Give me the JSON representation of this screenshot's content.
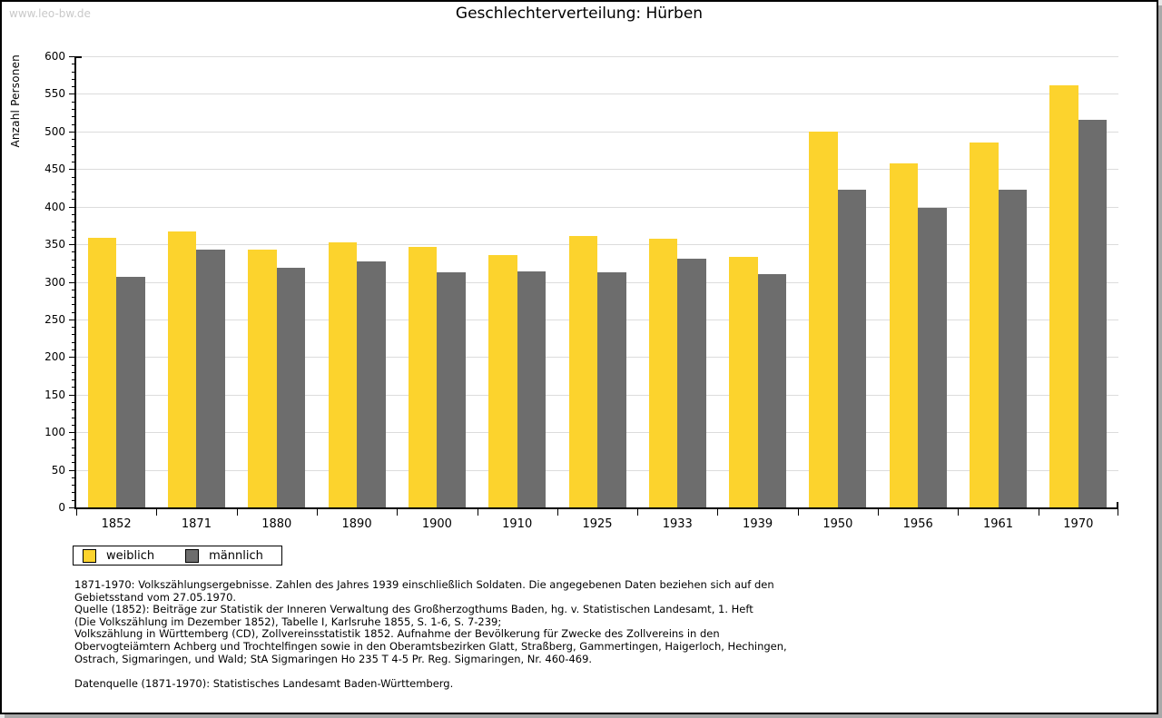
{
  "watermark": "www.leo-bw.de",
  "title": "Geschlechterverteilung: Hürben",
  "chart_data": {
    "type": "bar",
    "title": "Geschlechterverteilung: Hürben",
    "ylabel": "Anzahl Personen",
    "xlabel": "",
    "ylim": [
      0,
      600
    ],
    "ytick_step": 50,
    "ytick_minor_step": 10,
    "grid": true,
    "legend_position": "bottom-left",
    "colors": {
      "grid": "#dcdcdc",
      "axis": "#000000"
    },
    "categories": [
      "1852",
      "1871",
      "1880",
      "1890",
      "1900",
      "1910",
      "1925",
      "1933",
      "1939",
      "1950",
      "1956",
      "1961",
      "1970"
    ],
    "series": [
      {
        "name": "weiblich",
        "color": "#fcd32d",
        "values": [
          359,
          367,
          343,
          353,
          346,
          336,
          361,
          357,
          333,
          500,
          458,
          485,
          561
        ]
      },
      {
        "name": "männlich",
        "color": "#6d6d6d",
        "values": [
          307,
          343,
          319,
          327,
          313,
          314,
          313,
          331,
          310,
          422,
          398,
          422,
          515
        ]
      }
    ]
  },
  "footer": {
    "lines": [
      "1871-1970: Volkszählungsergebnisse. Zahlen des Jahres 1939 einschließlich Soldaten. Die angegebenen Daten beziehen sich auf den",
      "Gebietsstand vom 27.05.1970.",
      "Quelle (1852): Beiträge zur Statistik der Inneren Verwaltung des Großherzogthums Baden, hg. v. Statistischen Landesamt, 1. Heft",
      "(Die Volkszählung im Dezember 1852), Tabelle I, Karlsruhe 1855, S. 1-6, S. 7-239;",
      "Volkszählung in Württemberg (CD), Zollvereinsstatistik 1852. Aufnahme der Bevölkerung für Zwecke des Zollvereins in den",
      "Obervogteiämtern Achberg und Trochtelfingen sowie in den Oberamtsbezirken Glatt, Straßberg, Gammertingen, Haigerloch, Hechingen,",
      "Ostrach, Sigmaringen, und Wald; StA Sigmaringen Ho 235 T 4-5 Pr. Reg. Sigmaringen, Nr. 460-469.",
      "",
      "Datenquelle (1871-1970): Statistisches Landesamt Baden-Württemberg."
    ]
  }
}
